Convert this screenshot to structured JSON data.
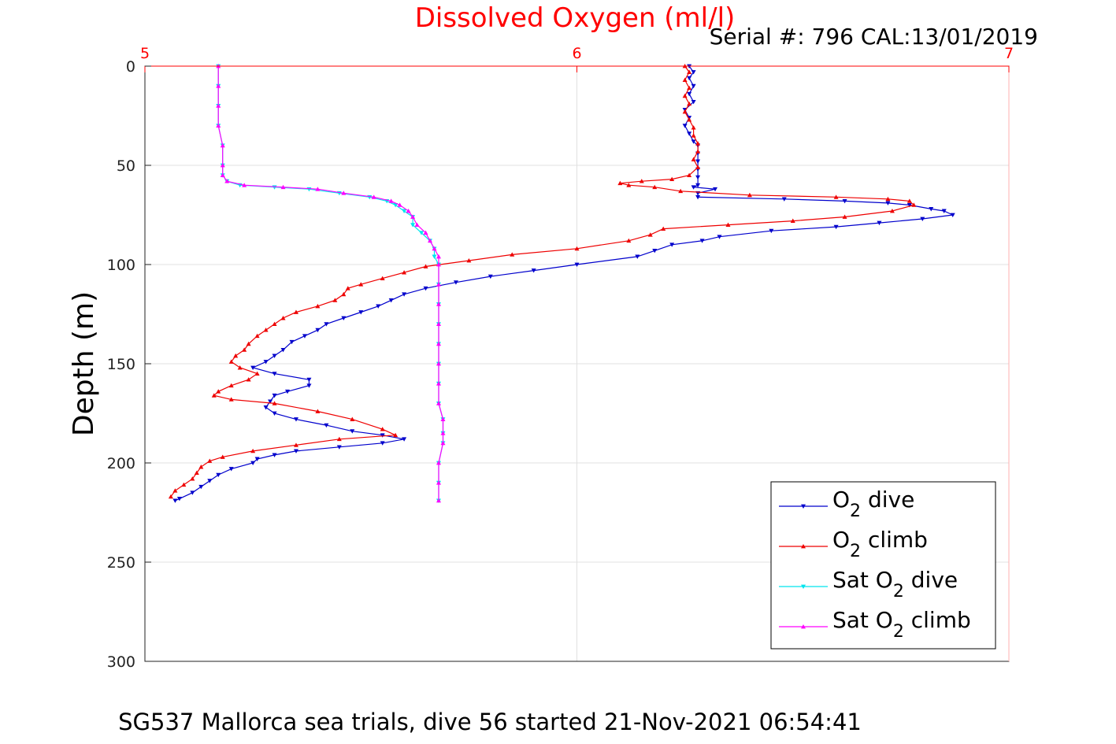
{
  "chart_data": {
    "type": "line",
    "title": "Dissolved Oxygen (ml/l)",
    "subtitle": "Serial #: 796  CAL:13/01/2019",
    "footer": "SG537 Mallorca sea trials, dive 56 started 21-Nov-2021 06:54:41",
    "xlabel": "",
    "ylabel": "Depth (m)",
    "xlim": [
      5,
      7
    ],
    "ylim": [
      0,
      300
    ],
    "y_reversed": true,
    "x_axis_position": "top",
    "x_ticks": [
      "5",
      "6",
      "7"
    ],
    "x_tick_values": [
      5,
      6,
      7
    ],
    "y_ticks": [
      "0",
      "50",
      "100",
      "150",
      "200",
      "250",
      "300"
    ],
    "y_tick_values": [
      0,
      50,
      100,
      150,
      200,
      250,
      300
    ],
    "grid": true,
    "legend_placement": "bottom-right",
    "colors": {
      "title": "#ff0000",
      "x_axis": "#ff0000",
      "o2_dive": "#0000cc",
      "o2_climb": "#ee0000",
      "sat_dive": "#00e5ee",
      "sat_climb": "#ff00ff",
      "grid": "#e0e0e0"
    },
    "series": [
      {
        "name_main": "O",
        "name_sub": "2",
        "name_rest": " dive",
        "color": "#0000cc",
        "marker": "triangle-down",
        "points": [
          [
            6.26,
            0
          ],
          [
            6.27,
            3
          ],
          [
            6.26,
            6
          ],
          [
            6.27,
            10
          ],
          [
            6.26,
            14
          ],
          [
            6.27,
            18
          ],
          [
            6.25,
            22
          ],
          [
            6.26,
            26
          ],
          [
            6.25,
            30
          ],
          [
            6.26,
            34
          ],
          [
            6.27,
            38
          ],
          [
            6.28,
            40
          ],
          [
            6.28,
            44
          ],
          [
            6.28,
            48
          ],
          [
            6.28,
            52
          ],
          [
            6.28,
            56
          ],
          [
            6.28,
            60
          ],
          [
            6.27,
            61
          ],
          [
            6.32,
            62
          ],
          [
            6.28,
            64
          ],
          [
            6.28,
            66
          ],
          [
            6.48,
            67
          ],
          [
            6.62,
            68
          ],
          [
            6.72,
            69
          ],
          [
            6.77,
            70
          ],
          [
            6.82,
            72
          ],
          [
            6.85,
            73
          ],
          [
            6.87,
            75
          ],
          [
            6.8,
            77
          ],
          [
            6.7,
            79
          ],
          [
            6.6,
            81
          ],
          [
            6.45,
            83
          ],
          [
            6.33,
            86
          ],
          [
            6.29,
            88
          ],
          [
            6.22,
            90
          ],
          [
            6.18,
            93
          ],
          [
            6.14,
            96
          ],
          [
            6.0,
            100
          ],
          [
            5.9,
            103
          ],
          [
            5.8,
            106
          ],
          [
            5.72,
            109
          ],
          [
            5.65,
            112
          ],
          [
            5.6,
            115
          ],
          [
            5.57,
            118
          ],
          [
            5.54,
            121
          ],
          [
            5.5,
            124
          ],
          [
            5.46,
            127
          ],
          [
            5.42,
            130
          ],
          [
            5.4,
            133
          ],
          [
            5.37,
            136
          ],
          [
            5.34,
            139
          ],
          [
            5.32,
            143
          ],
          [
            5.3,
            146
          ],
          [
            5.28,
            149
          ],
          [
            5.25,
            152
          ],
          [
            5.3,
            155
          ],
          [
            5.38,
            158
          ],
          [
            5.38,
            161
          ],
          [
            5.33,
            164
          ],
          [
            5.3,
            166
          ],
          [
            5.29,
            169
          ],
          [
            5.28,
            172
          ],
          [
            5.3,
            175
          ],
          [
            5.35,
            178
          ],
          [
            5.42,
            181
          ],
          [
            5.48,
            184
          ],
          [
            5.55,
            186
          ],
          [
            5.6,
            188
          ],
          [
            5.55,
            190
          ],
          [
            5.45,
            192
          ],
          [
            5.35,
            194
          ],
          [
            5.3,
            196
          ],
          [
            5.26,
            198
          ],
          [
            5.25,
            200
          ],
          [
            5.2,
            203
          ],
          [
            5.17,
            206
          ],
          [
            5.15,
            209
          ],
          [
            5.13,
            212
          ],
          [
            5.11,
            215
          ],
          [
            5.08,
            218
          ],
          [
            5.07,
            219
          ]
        ]
      },
      {
        "name_main": "O",
        "name_sub": "2",
        "name_rest": " climb",
        "color": "#ee0000",
        "marker": "triangle-up",
        "points": [
          [
            6.25,
            0
          ],
          [
            6.26,
            3
          ],
          [
            6.25,
            7
          ],
          [
            6.26,
            11
          ],
          [
            6.25,
            15
          ],
          [
            6.26,
            19
          ],
          [
            6.25,
            23
          ],
          [
            6.26,
            27
          ],
          [
            6.27,
            31
          ],
          [
            6.27,
            35
          ],
          [
            6.28,
            39
          ],
          [
            6.28,
            43
          ],
          [
            6.27,
            47
          ],
          [
            6.28,
            51
          ],
          [
            6.26,
            55
          ],
          [
            6.22,
            57
          ],
          [
            6.15,
            58
          ],
          [
            6.1,
            59
          ],
          [
            6.12,
            60
          ],
          [
            6.18,
            61
          ],
          [
            6.24,
            63
          ],
          [
            6.4,
            65
          ],
          [
            6.6,
            66
          ],
          [
            6.72,
            67
          ],
          [
            6.77,
            68
          ],
          [
            6.78,
            70
          ],
          [
            6.73,
            73
          ],
          [
            6.62,
            76
          ],
          [
            6.5,
            78
          ],
          [
            6.35,
            80
          ],
          [
            6.2,
            82
          ],
          [
            6.17,
            85
          ],
          [
            6.12,
            88
          ],
          [
            6.0,
            92
          ],
          [
            5.85,
            95
          ],
          [
            5.75,
            98
          ],
          [
            5.65,
            101
          ],
          [
            5.6,
            104
          ],
          [
            5.55,
            107
          ],
          [
            5.5,
            110
          ],
          [
            5.47,
            112
          ],
          [
            5.46,
            115
          ],
          [
            5.44,
            118
          ],
          [
            5.4,
            121
          ],
          [
            5.35,
            124
          ],
          [
            5.32,
            127
          ],
          [
            5.3,
            130
          ],
          [
            5.28,
            133
          ],
          [
            5.26,
            136
          ],
          [
            5.24,
            140
          ],
          [
            5.23,
            143
          ],
          [
            5.21,
            146
          ],
          [
            5.2,
            149
          ],
          [
            5.22,
            152
          ],
          [
            5.26,
            155
          ],
          [
            5.24,
            158
          ],
          [
            5.2,
            161
          ],
          [
            5.17,
            164
          ],
          [
            5.16,
            166
          ],
          [
            5.2,
            168
          ],
          [
            5.3,
            170
          ],
          [
            5.4,
            174
          ],
          [
            5.48,
            178
          ],
          [
            5.55,
            183
          ],
          [
            5.58,
            186
          ],
          [
            5.45,
            188
          ],
          [
            5.35,
            191
          ],
          [
            5.25,
            194
          ],
          [
            5.18,
            197
          ],
          [
            5.15,
            199
          ],
          [
            5.13,
            202
          ],
          [
            5.12,
            205
          ],
          [
            5.11,
            208
          ],
          [
            5.09,
            211
          ],
          [
            5.07,
            214
          ],
          [
            5.06,
            217
          ]
        ]
      },
      {
        "name_main": "Sat O",
        "name_sub": "2",
        "name_rest": " dive",
        "color": "#00e5ee",
        "marker": "triangle-down",
        "points": [
          [
            5.17,
            0
          ],
          [
            5.17,
            10
          ],
          [
            5.17,
            20
          ],
          [
            5.17,
            30
          ],
          [
            5.18,
            40
          ],
          [
            5.18,
            50
          ],
          [
            5.18,
            55
          ],
          [
            5.19,
            58
          ],
          [
            5.22,
            60
          ],
          [
            5.3,
            61
          ],
          [
            5.38,
            62
          ],
          [
            5.45,
            64
          ],
          [
            5.52,
            66
          ],
          [
            5.56,
            68
          ],
          [
            5.58,
            70
          ],
          [
            5.6,
            73
          ],
          [
            5.62,
            76
          ],
          [
            5.62,
            80
          ],
          [
            5.64,
            84
          ],
          [
            5.66,
            88
          ],
          [
            5.67,
            92
          ],
          [
            5.67,
            96
          ],
          [
            5.68,
            100
          ],
          [
            5.68,
            110
          ],
          [
            5.68,
            120
          ],
          [
            5.68,
            130
          ],
          [
            5.68,
            140
          ],
          [
            5.68,
            150
          ],
          [
            5.68,
            160
          ],
          [
            5.68,
            170
          ],
          [
            5.69,
            178
          ],
          [
            5.69,
            185
          ],
          [
            5.69,
            190
          ],
          [
            5.68,
            200
          ],
          [
            5.68,
            210
          ],
          [
            5.68,
            219
          ]
        ]
      },
      {
        "name_main": "Sat O",
        "name_sub": "2",
        "name_rest": " climb",
        "color": "#ff00ff",
        "marker": "triangle-up",
        "points": [
          [
            5.17,
            0
          ],
          [
            5.17,
            10
          ],
          [
            5.17,
            20
          ],
          [
            5.17,
            30
          ],
          [
            5.18,
            40
          ],
          [
            5.18,
            50
          ],
          [
            5.18,
            55
          ],
          [
            5.19,
            58
          ],
          [
            5.23,
            60
          ],
          [
            5.32,
            61
          ],
          [
            5.4,
            62
          ],
          [
            5.46,
            64
          ],
          [
            5.53,
            66
          ],
          [
            5.57,
            68
          ],
          [
            5.59,
            70
          ],
          [
            5.61,
            73
          ],
          [
            5.62,
            76
          ],
          [
            5.63,
            80
          ],
          [
            5.65,
            84
          ],
          [
            5.66,
            88
          ],
          [
            5.67,
            92
          ],
          [
            5.68,
            96
          ],
          [
            5.68,
            100
          ],
          [
            5.68,
            110
          ],
          [
            5.68,
            120
          ],
          [
            5.68,
            130
          ],
          [
            5.68,
            140
          ],
          [
            5.68,
            150
          ],
          [
            5.68,
            160
          ],
          [
            5.68,
            170
          ],
          [
            5.69,
            178
          ],
          [
            5.69,
            185
          ],
          [
            5.69,
            190
          ],
          [
            5.68,
            200
          ],
          [
            5.68,
            210
          ],
          [
            5.68,
            219
          ]
        ]
      }
    ]
  }
}
